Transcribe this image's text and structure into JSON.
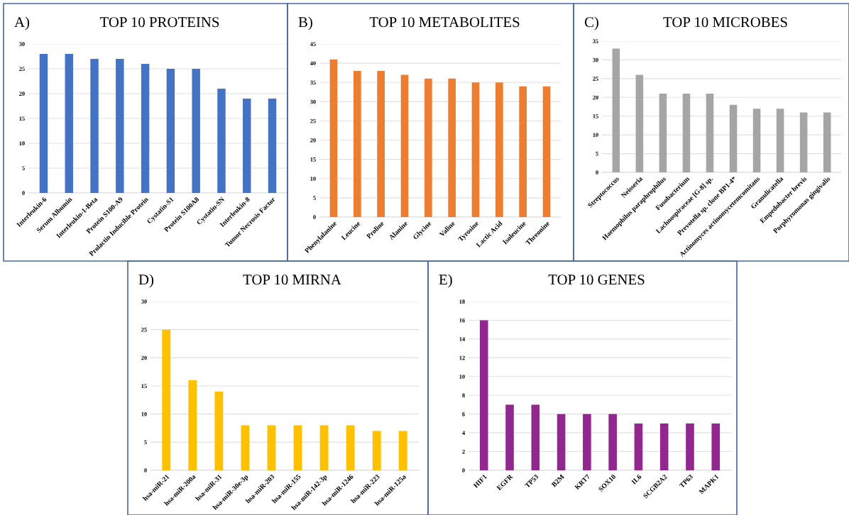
{
  "chart_data": [
    {
      "type": "bar",
      "title": "TOP 10 PROTEINS",
      "annotations": [
        "A)"
      ],
      "categories": [
        "Interleukin-6",
        "Serum Albumin",
        "Interleukin-1-Beta",
        "Protein S100-A9",
        "Prolactin Inducible Protein",
        "Cystatin-S1",
        "Protein S100A8",
        "Cystatin-SN",
        "Interleukin-8",
        "Tumor Necrosis Factor"
      ],
      "values": [
        28,
        28,
        27,
        27,
        26,
        25,
        25,
        21,
        19,
        19
      ],
      "color": "#4472c4",
      "ylim": [
        0,
        30
      ],
      "yticks": [
        0,
        5,
        10,
        15,
        20,
        25,
        30
      ],
      "grid": "y"
    },
    {
      "type": "bar",
      "title": "TOP 10 METABOLITES",
      "annotations": [
        "B)"
      ],
      "categories": [
        "Phenylalanine",
        "Leucine",
        "Proline",
        "Alanine",
        "Glycine",
        "Valine",
        "Tyrosine",
        "Lactic Acid",
        "Isoleucine",
        "Threonine"
      ],
      "values": [
        41,
        38,
        38,
        37,
        36,
        36,
        35,
        35,
        34,
        34
      ],
      "color": "#ed7d31",
      "ylim": [
        0,
        45
      ],
      "yticks": [
        0,
        5,
        10,
        15,
        20,
        25,
        30,
        35,
        40,
        45
      ],
      "grid": "y"
    },
    {
      "type": "bar",
      "title": "TOP 10 MICROBES",
      "annotations": [
        "C)"
      ],
      "categories": [
        "Streptococcus",
        "Neisseria",
        "Haemophilus paraphrophilus",
        "Fusobacterium",
        "Lachnospiraceae [G-8] sp.",
        "Prevotella sp. clone BP1-4*",
        "Actinomyces actinomycetemcomitans",
        "Granulicatella",
        "Empedobacter brevis",
        "Porphyromonas gingivalis"
      ],
      "values": [
        33,
        26,
        21,
        21,
        21,
        18,
        17,
        17,
        16,
        16
      ],
      "color": "#a5a5a5",
      "ylim": [
        0,
        35
      ],
      "yticks": [
        0,
        5,
        10,
        15,
        20,
        25,
        30,
        35
      ],
      "grid": "y"
    },
    {
      "type": "bar",
      "title": "TOP 10 MIRNA",
      "annotations": [
        "D)"
      ],
      "categories": [
        "hsa-miR-21",
        "hsa-miR-200a",
        "hsa-miR-31",
        "hsa-miR-30e-3p",
        "hsa-miR-203",
        "hsa-miR-155",
        "hsa-miR-142-3p",
        "hsa-miR-1246",
        "hsa-miR-223",
        "hsa-miR-125a"
      ],
      "values": [
        25,
        16,
        14,
        8,
        8,
        8,
        8,
        8,
        7,
        7
      ],
      "color": "#ffc000",
      "ylim": [
        0,
        30
      ],
      "yticks": [
        0,
        5,
        10,
        15,
        20,
        25,
        30
      ],
      "grid": "y"
    },
    {
      "type": "bar",
      "title": "TOP 10 GENES",
      "annotations": [
        "E)"
      ],
      "categories": [
        "HIF1",
        "EGFR",
        "TP53",
        "B2M",
        "KRT7",
        "SOX10",
        "IL6",
        "SCGB2A2",
        "TP63",
        "MAPK1"
      ],
      "values": [
        16,
        7,
        7,
        6,
        6,
        6,
        5,
        5,
        5,
        5
      ],
      "color": "#92278f",
      "ylim": [
        0,
        18
      ],
      "yticks": [
        0,
        2,
        4,
        6,
        8,
        10,
        12,
        14,
        16,
        18
      ],
      "grid": "y"
    }
  ]
}
